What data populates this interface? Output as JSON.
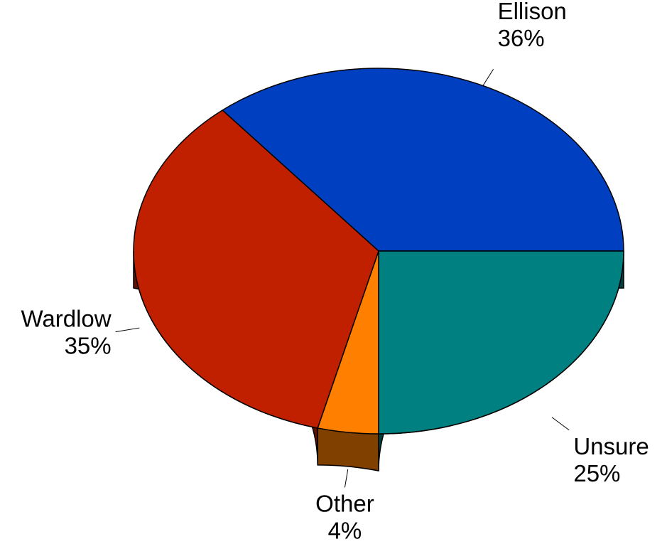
{
  "chart_data": {
    "type": "pie",
    "style": "3d",
    "slices": [
      {
        "label": "Ellison",
        "value": 36,
        "display": "36%",
        "color": "#0040C0",
        "side_color": "#002A80"
      },
      {
        "label": "Unsure",
        "value": 25,
        "display": "25%",
        "color": "#008080",
        "side_color": "#004040"
      },
      {
        "label": "Other",
        "value": 4,
        "display": "4%",
        "color": "#FF8000",
        "side_color": "#804000"
      },
      {
        "label": "Wardlow",
        "value": 35,
        "display": "35%",
        "color": "#C02000",
        "side_color": "#601000"
      }
    ],
    "unit": "%",
    "legend": "none"
  }
}
